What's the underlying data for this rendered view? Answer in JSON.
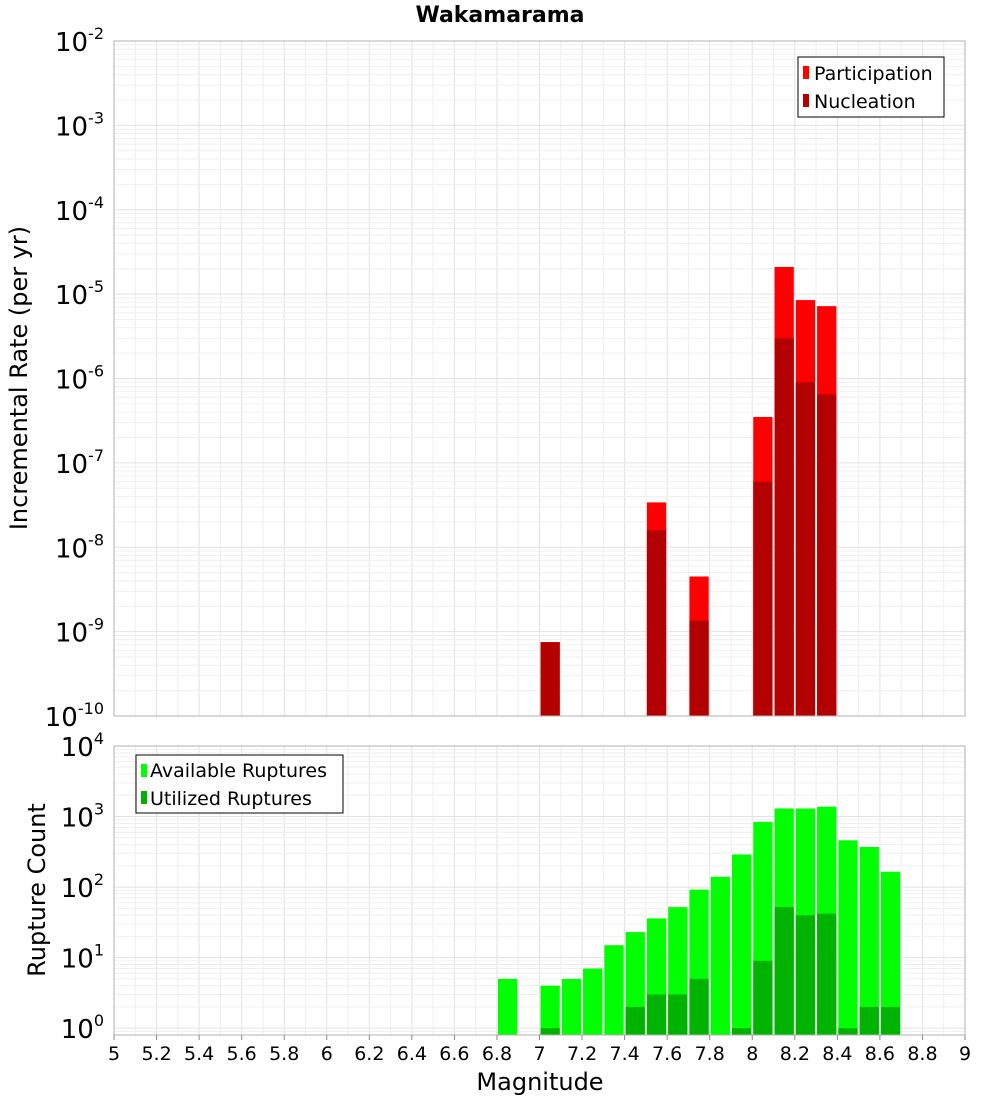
{
  "chart_data": [
    {
      "type": "bar",
      "id": "rate",
      "title": "Wakamarama",
      "xlabel": "",
      "ylabel": "Incremental Rate (per yr)",
      "yscale": "log",
      "ylim": [
        1e-10,
        0.01
      ],
      "y_ticks": [
        {
          "base": "10",
          "exp": "-2"
        },
        {
          "base": "10",
          "exp": "-3"
        },
        {
          "base": "10",
          "exp": "-4"
        },
        {
          "base": "10",
          "exp": "-5"
        },
        {
          "base": "10",
          "exp": "-6"
        },
        {
          "base": "10",
          "exp": "-7"
        },
        {
          "base": "10",
          "exp": "-8"
        },
        {
          "base": "10",
          "exp": "-9"
        },
        {
          "base": "10",
          "exp": "-10"
        }
      ],
      "legend_position": "top-right",
      "series": [
        {
          "name": "Participation",
          "color": "#ff0000",
          "points": [
            {
              "x": 7.05,
              "y": 7.5e-10
            },
            {
              "x": 7.55,
              "y": 3.4e-08
            },
            {
              "x": 7.75,
              "y": 4.5e-09
            },
            {
              "x": 8.05,
              "y": 3.5e-07
            },
            {
              "x": 8.15,
              "y": 2.1e-05
            },
            {
              "x": 8.25,
              "y": 8.5e-06
            },
            {
              "x": 8.35,
              "y": 7.2e-06
            }
          ]
        },
        {
          "name": "Nucleation",
          "color": "#b30000",
          "points": [
            {
              "x": 7.05,
              "y": 7.5e-10
            },
            {
              "x": 7.55,
              "y": 1.6e-08
            },
            {
              "x": 7.75,
              "y": 1.35e-09
            },
            {
              "x": 8.05,
              "y": 6e-08
            },
            {
              "x": 8.15,
              "y": 3e-06
            },
            {
              "x": 8.25,
              "y": 9e-07
            },
            {
              "x": 8.35,
              "y": 6.5e-07
            }
          ]
        }
      ]
    },
    {
      "type": "bar",
      "id": "count",
      "title": "",
      "xlabel": "Magnitude",
      "ylabel": "Rupture Count",
      "yscale": "log",
      "ylim": [
        0.8,
        10000
      ],
      "xlim": [
        5,
        9
      ],
      "x_ticks": [
        "5",
        "5.2",
        "5.4",
        "5.6",
        "5.8",
        "6",
        "6.2",
        "6.4",
        "6.6",
        "6.8",
        "7",
        "7.2",
        "7.4",
        "7.6",
        "7.8",
        "8",
        "8.2",
        "8.4",
        "8.6",
        "8.8",
        "9"
      ],
      "y_ticks": [
        {
          "base": "10",
          "exp": "4"
        },
        {
          "base": "10",
          "exp": "3"
        },
        {
          "base": "10",
          "exp": "2"
        },
        {
          "base": "10",
          "exp": "1"
        },
        {
          "base": "10",
          "exp": "0"
        }
      ],
      "legend_position": "top-left",
      "series": [
        {
          "name": "Available Ruptures",
          "color": "#00ff00",
          "points": [
            {
              "x": 6.85,
              "y": 5
            },
            {
              "x": 7.05,
              "y": 4
            },
            {
              "x": 7.15,
              "y": 5
            },
            {
              "x": 7.25,
              "y": 7
            },
            {
              "x": 7.35,
              "y": 15
            },
            {
              "x": 7.45,
              "y": 23
            },
            {
              "x": 7.55,
              "y": 36
            },
            {
              "x": 7.65,
              "y": 52
            },
            {
              "x": 7.75,
              "y": 92
            },
            {
              "x": 7.85,
              "y": 140
            },
            {
              "x": 7.95,
              "y": 290
            },
            {
              "x": 8.05,
              "y": 840
            },
            {
              "x": 8.15,
              "y": 1300
            },
            {
              "x": 8.25,
              "y": 1300
            },
            {
              "x": 8.35,
              "y": 1380
            },
            {
              "x": 8.45,
              "y": 460
            },
            {
              "x": 8.55,
              "y": 370
            },
            {
              "x": 8.65,
              "y": 165
            }
          ]
        },
        {
          "name": "Utilized Ruptures",
          "color": "#00b300",
          "points": [
            {
              "x": 7.05,
              "y": 1
            },
            {
              "x": 7.45,
              "y": 2
            },
            {
              "x": 7.55,
              "y": 3
            },
            {
              "x": 7.65,
              "y": 3
            },
            {
              "x": 7.75,
              "y": 5
            },
            {
              "x": 7.95,
              "y": 1
            },
            {
              "x": 8.05,
              "y": 9
            },
            {
              "x": 8.15,
              "y": 52
            },
            {
              "x": 8.25,
              "y": 40
            },
            {
              "x": 8.35,
              "y": 42
            },
            {
              "x": 8.45,
              "y": 1
            },
            {
              "x": 8.55,
              "y": 2
            },
            {
              "x": 8.65,
              "y": 2
            }
          ]
        }
      ]
    }
  ]
}
